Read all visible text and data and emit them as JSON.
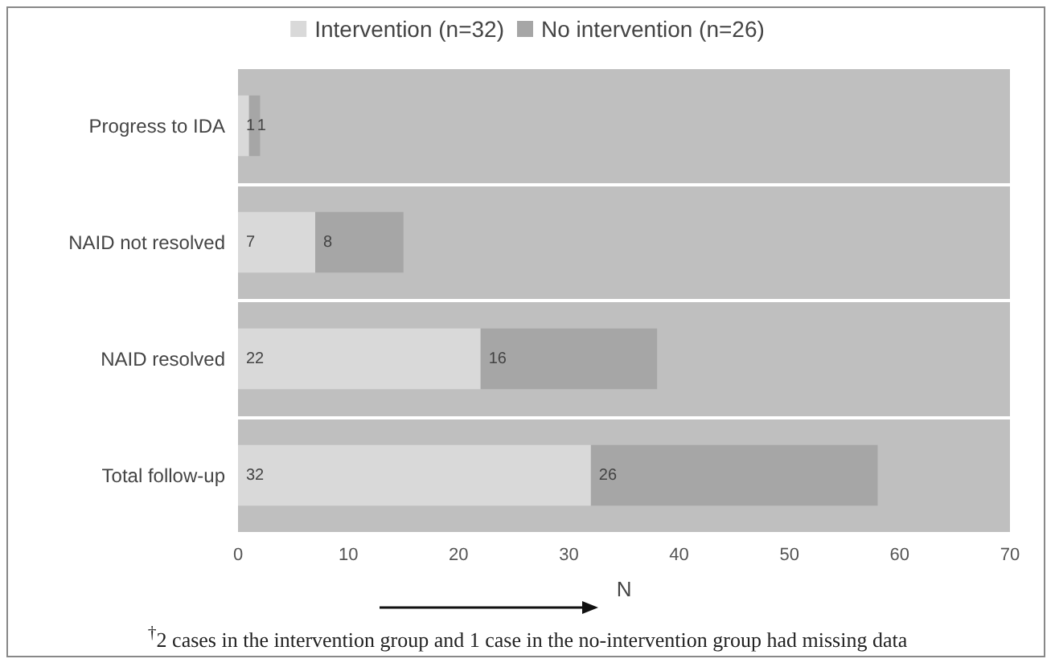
{
  "chart_data": {
    "type": "bar",
    "orientation": "horizontal",
    "stacked": true,
    "categories": [
      "Progress to IDA",
      "NAID not resolved",
      "NAID resolved",
      "Total follow-up"
    ],
    "series": [
      {
        "name": "Intervention (n=32)",
        "color": "#d9d9d9",
        "values": [
          1,
          7,
          22,
          32
        ]
      },
      {
        "name": "No intervention (n=26)",
        "color": "#a6a6a6",
        "values": [
          1,
          8,
          16,
          26
        ]
      }
    ],
    "xlabel": "N",
    "xlim": [
      0,
      70
    ],
    "xticks": [
      0,
      10,
      20,
      30,
      40,
      50,
      60,
      70
    ],
    "grid": "y",
    "legend": "top",
    "data_labels": true,
    "annotations": [
      "$^{†}$2 cases in the intervention group and 1 case in the no-intervention group had missing data"
    ]
  }
}
